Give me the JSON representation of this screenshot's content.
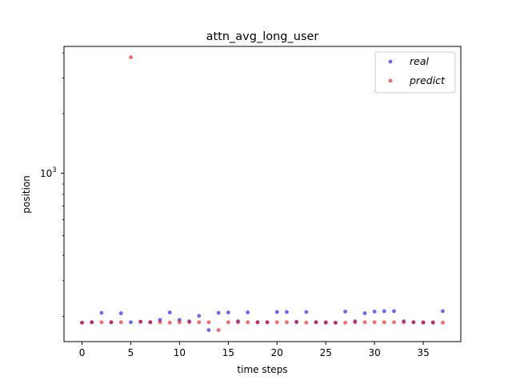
{
  "chart_data": {
    "type": "scatter",
    "title": "attn_avg_long_user",
    "xlabel": "time steps",
    "ylabel": "position",
    "yscale": "log",
    "xlim": [
      -1.85,
      38.85
    ],
    "ylim": [
      150,
      4300
    ],
    "x_ticks": [
      0,
      5,
      10,
      15,
      20,
      25,
      30,
      35
    ],
    "x_tick_labels": [
      "0",
      "5",
      "10",
      "15",
      "20",
      "25",
      "30",
      "35"
    ],
    "y_ticks": [
      1000
    ],
    "y_tick_labels": [
      "10",
      "3"
    ],
    "legend": {
      "position": "top-right"
    },
    "series": [
      {
        "name": "real",
        "color": "#0000ff",
        "x": [
          0,
          1,
          2,
          3,
          4,
          5,
          6,
          7,
          8,
          9,
          10,
          11,
          12,
          13,
          14,
          15,
          16,
          17,
          18,
          19,
          20,
          21,
          22,
          23,
          24,
          25,
          26,
          27,
          28,
          29,
          30,
          31,
          32,
          33,
          34,
          35,
          36,
          37
        ],
        "y": [
          186,
          187,
          208,
          187,
          207,
          187,
          188,
          187,
          192,
          209,
          192,
          189,
          201,
          171,
          208,
          209,
          189,
          209,
          187,
          187,
          210,
          210,
          188,
          210,
          187,
          186,
          186,
          211,
          189,
          207,
          211,
          212,
          212,
          189,
          187,
          186,
          186,
          212
        ]
      },
      {
        "name": "predict",
        "color": "#ff0000",
        "x": [
          0,
          1,
          2,
          3,
          4,
          5,
          6,
          7,
          8,
          9,
          10,
          11,
          12,
          13,
          14,
          15,
          16,
          17,
          18,
          19,
          20,
          21,
          22,
          23,
          24,
          25,
          26,
          27,
          28,
          29,
          30,
          31,
          32,
          33,
          34,
          35,
          36,
          37
        ],
        "y": [
          186,
          187,
          187,
          187,
          187,
          3800,
          188,
          187,
          187,
          186,
          187,
          187,
          187,
          187,
          171,
          187,
          187,
          187,
          187,
          187,
          187,
          187,
          187,
          186,
          187,
          187,
          186,
          186,
          187,
          187,
          187,
          187,
          187,
          187,
          187,
          187,
          187,
          186
        ]
      }
    ]
  }
}
